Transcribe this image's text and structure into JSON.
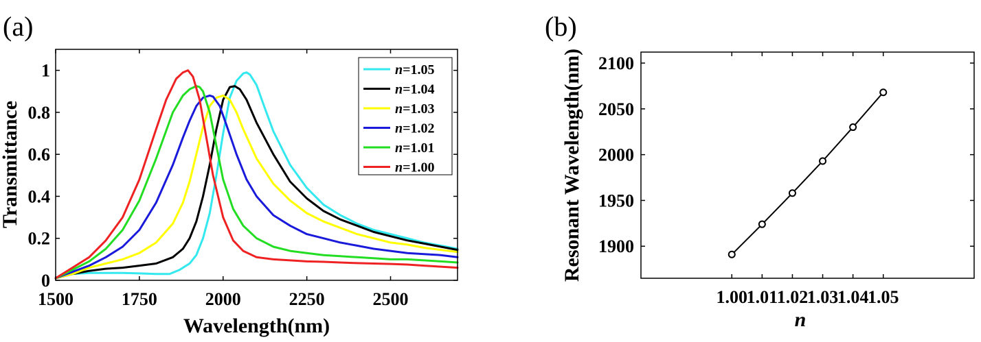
{
  "chart_data": [
    {
      "panel": "(a)",
      "type": "line",
      "title": "",
      "xlabel": "Wavelength(nm)",
      "ylabel": "Transmittance",
      "xlim": [
        1500,
        2700
      ],
      "ylim": [
        0,
        1.1
      ],
      "xticks": [
        "1500",
        "1750",
        "2000",
        "2250",
        "2500"
      ],
      "xtick_values": [
        1500,
        1750,
        2000,
        2250,
        2500
      ],
      "yticks": [
        "0",
        "0.2",
        "0.4",
        "0.6",
        "0.8",
        "1"
      ],
      "ytick_values": [
        0,
        0.2,
        0.4,
        0.6,
        0.8,
        1
      ],
      "legend_position": "top-right",
      "legend_var": "n",
      "grid": false,
      "series": [
        {
          "name": "=1.05",
          "color": "#33e8ee",
          "x": [
            1500,
            1550,
            1600,
            1650,
            1700,
            1750,
            1800,
            1840,
            1870,
            1900,
            1920,
            1940,
            1960,
            1980,
            2000,
            2020,
            2040,
            2060,
            2070,
            2080,
            2100,
            2120,
            2150,
            2200,
            2250,
            2300,
            2350,
            2400,
            2450,
            2500,
            2550,
            2600,
            2650,
            2700
          ],
          "y": [
            0.01,
            0.03,
            0.035,
            0.035,
            0.035,
            0.033,
            0.03,
            0.03,
            0.05,
            0.08,
            0.12,
            0.2,
            0.32,
            0.5,
            0.7,
            0.87,
            0.95,
            0.985,
            0.99,
            0.98,
            0.93,
            0.84,
            0.71,
            0.55,
            0.44,
            0.36,
            0.31,
            0.27,
            0.24,
            0.22,
            0.2,
            0.18,
            0.165,
            0.15
          ]
        },
        {
          "name": "=1.04",
          "color": "#000000",
          "x": [
            1500,
            1550,
            1600,
            1650,
            1700,
            1750,
            1800,
            1850,
            1880,
            1900,
            1920,
            1940,
            1960,
            1980,
            2000,
            2020,
            2035,
            2050,
            2070,
            2100,
            2150,
            2200,
            2250,
            2300,
            2350,
            2400,
            2450,
            2500,
            2550,
            2600,
            2650,
            2700
          ],
          "y": [
            0.01,
            0.03,
            0.045,
            0.055,
            0.06,
            0.07,
            0.08,
            0.11,
            0.15,
            0.2,
            0.28,
            0.4,
            0.55,
            0.72,
            0.86,
            0.92,
            0.925,
            0.91,
            0.86,
            0.75,
            0.6,
            0.47,
            0.39,
            0.33,
            0.29,
            0.26,
            0.23,
            0.21,
            0.19,
            0.175,
            0.16,
            0.145
          ]
        },
        {
          "name": "=1.03",
          "color": "#ffff00",
          "x": [
            1500,
            1550,
            1600,
            1650,
            1700,
            1750,
            1800,
            1850,
            1880,
            1900,
            1920,
            1940,
            1960,
            1980,
            2000,
            2020,
            2040,
            2060,
            2100,
            2150,
            2200,
            2250,
            2300,
            2350,
            2400,
            2450,
            2500,
            2550,
            2600,
            2650,
            2700
          ],
          "y": [
            0.01,
            0.03,
            0.06,
            0.08,
            0.1,
            0.13,
            0.18,
            0.27,
            0.37,
            0.47,
            0.6,
            0.73,
            0.83,
            0.87,
            0.88,
            0.86,
            0.8,
            0.72,
            0.58,
            0.46,
            0.38,
            0.32,
            0.28,
            0.25,
            0.22,
            0.2,
            0.18,
            0.17,
            0.155,
            0.145,
            0.135
          ]
        },
        {
          "name": "=1.02",
          "color": "#1a1adb",
          "x": [
            1500,
            1550,
            1600,
            1650,
            1700,
            1750,
            1800,
            1850,
            1880,
            1900,
            1920,
            1940,
            1960,
            1970,
            1990,
            2010,
            2040,
            2070,
            2100,
            2150,
            2200,
            2250,
            2300,
            2350,
            2400,
            2450,
            2500,
            2550,
            2600,
            2650,
            2700
          ],
          "y": [
            0.01,
            0.04,
            0.07,
            0.11,
            0.16,
            0.24,
            0.37,
            0.55,
            0.68,
            0.76,
            0.83,
            0.87,
            0.88,
            0.875,
            0.83,
            0.74,
            0.6,
            0.48,
            0.4,
            0.31,
            0.26,
            0.22,
            0.2,
            0.18,
            0.165,
            0.15,
            0.14,
            0.13,
            0.125,
            0.12,
            0.11
          ]
        },
        {
          "name": "=1.01",
          "color": "#22dd22",
          "x": [
            1500,
            1550,
            1600,
            1650,
            1700,
            1750,
            1800,
            1850,
            1880,
            1900,
            1920,
            1930,
            1940,
            1960,
            1980,
            2000,
            2030,
            2060,
            2100,
            2150,
            2200,
            2250,
            2300,
            2350,
            2400,
            2450,
            2500,
            2550,
            2600,
            2650,
            2700
          ],
          "y": [
            0.01,
            0.05,
            0.09,
            0.15,
            0.24,
            0.38,
            0.58,
            0.8,
            0.88,
            0.91,
            0.925,
            0.92,
            0.9,
            0.8,
            0.64,
            0.48,
            0.34,
            0.26,
            0.2,
            0.16,
            0.14,
            0.13,
            0.12,
            0.115,
            0.11,
            0.105,
            0.1,
            0.1,
            0.095,
            0.09,
            0.085
          ]
        },
        {
          "name": "=1.00",
          "color": "#ee2222",
          "x": [
            1500,
            1550,
            1600,
            1650,
            1700,
            1750,
            1800,
            1830,
            1860,
            1880,
            1895,
            1910,
            1930,
            1950,
            1970,
            2000,
            2030,
            2060,
            2100,
            2150,
            2200,
            2250,
            2300,
            2350,
            2400,
            2450,
            2500,
            2550,
            2600,
            2650,
            2700
          ],
          "y": [
            0.01,
            0.06,
            0.11,
            0.19,
            0.3,
            0.48,
            0.72,
            0.86,
            0.96,
            0.99,
            1.0,
            0.97,
            0.86,
            0.68,
            0.5,
            0.3,
            0.19,
            0.14,
            0.11,
            0.1,
            0.095,
            0.09,
            0.088,
            0.085,
            0.082,
            0.08,
            0.078,
            0.075,
            0.07,
            0.065,
            0.06
          ]
        }
      ]
    },
    {
      "panel": "(b)",
      "type": "line",
      "title": "",
      "xlabel": "n",
      "ylabel": "Resonant Wavelength(nm)",
      "xlim": [
        0.97,
        1.08
      ],
      "ylim": [
        1865,
        2112
      ],
      "xticks": [
        "1.00",
        "1.01",
        "1.02",
        "1.03",
        "1.04",
        "1.05"
      ],
      "xtick_values": [
        1.0,
        1.01,
        1.02,
        1.03,
        1.04,
        1.05
      ],
      "yticks": [
        "1900",
        "1950",
        "2000",
        "2050",
        "2100"
      ],
      "ytick_values": [
        1900,
        1950,
        2000,
        2050,
        2100
      ],
      "grid": false,
      "marker": "circle",
      "series": [
        {
          "color": "#000000",
          "x": [
            1.0,
            1.01,
            1.02,
            1.03,
            1.04,
            1.05
          ],
          "y": [
            1891,
            1924,
            1958,
            1993,
            2030,
            2068
          ]
        }
      ]
    }
  ]
}
